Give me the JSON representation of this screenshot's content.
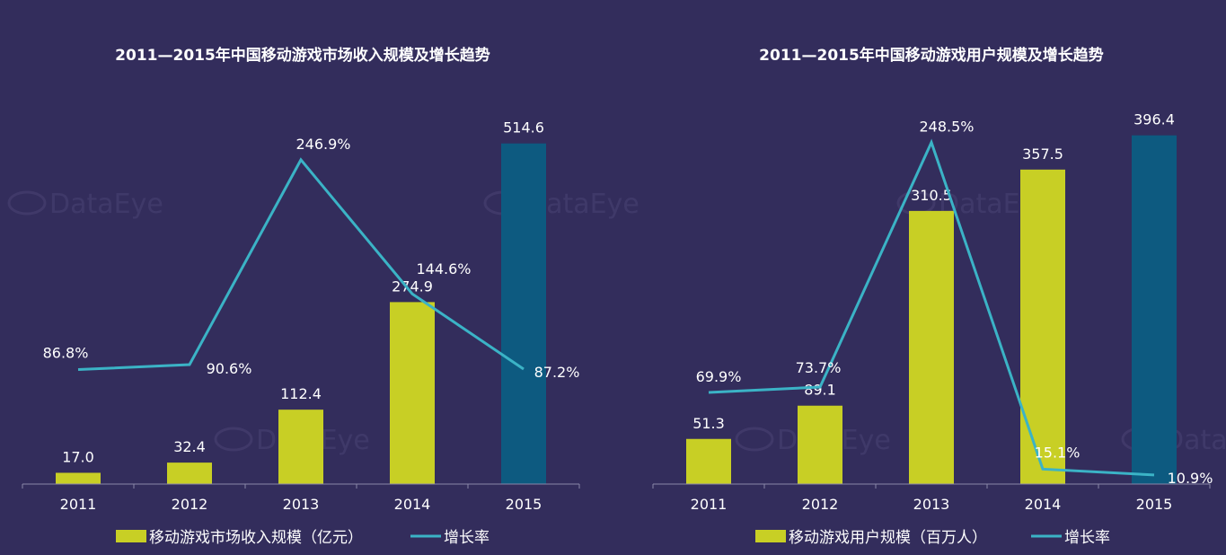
{
  "chart_data": [
    {
      "type": "bar",
      "title": "2011—2015年中国移动游戏市场收入规模及增长趋势",
      "categories": [
        "2011",
        "2012",
        "2013",
        "2014",
        "2015"
      ],
      "series": [
        {
          "name": "移动游戏市场收入规模（亿元）",
          "type": "bar",
          "values": [
            17.0,
            32.4,
            112.4,
            274.9,
            514.6
          ],
          "labels": [
            "17.0",
            "32.4",
            "112.4",
            "274.9",
            "514.6"
          ]
        },
        {
          "name": "增长率",
          "type": "line",
          "values": [
            86.8,
            90.6,
            246.9,
            144.6,
            87.2
          ],
          "labels": [
            "86.8%",
            "90.6%",
            "246.9%",
            "144.6%",
            "87.2%"
          ]
        }
      ],
      "legend_position": "bottom",
      "bar_color": "#c8cf25",
      "highlight_bar_color": "#0d5a80",
      "line_color": "#3bb3c6"
    },
    {
      "type": "bar",
      "title": "2011—2015年中国移动游戏用户规模及增长趋势",
      "categories": [
        "2011",
        "2012",
        "2013",
        "2014",
        "2015"
      ],
      "series": [
        {
          "name": "移动游戏用户规模（百万人）",
          "type": "bar",
          "values": [
            51.3,
            89.1,
            310.5,
            357.5,
            396.4
          ],
          "labels": [
            "51.3",
            "89.1",
            "310.5",
            "357.5",
            "396.4"
          ]
        },
        {
          "name": "增长率",
          "type": "line",
          "values": [
            69.9,
            73.7,
            248.5,
            15.1,
            10.9
          ],
          "labels": [
            "69.9%",
            "73.7%",
            "248.5%",
            "15.1%",
            "10.9%"
          ]
        }
      ],
      "legend_position": "bottom",
      "bar_color": "#c8cf25",
      "highlight_bar_color": "#0d5a80",
      "line_color": "#3bb3c6"
    }
  ],
  "watermark": "DataEye"
}
